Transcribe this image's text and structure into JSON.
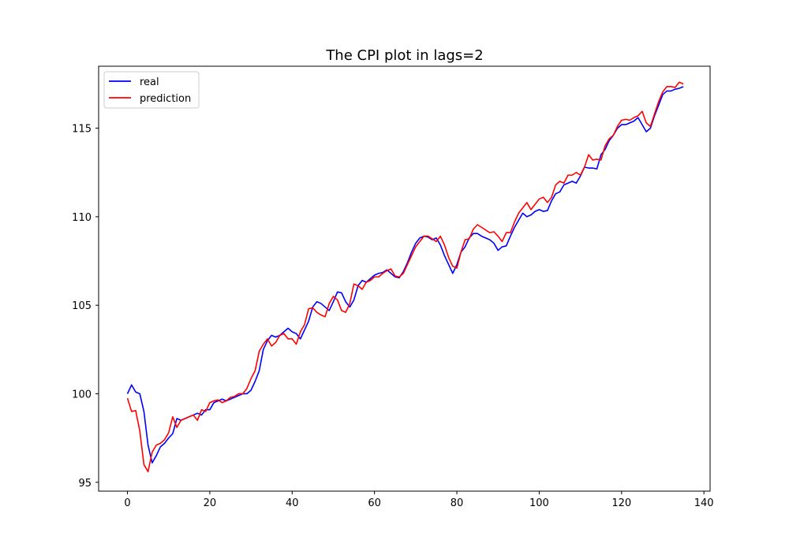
{
  "chart_data": {
    "type": "line",
    "title": "The CPI plot in lags=2",
    "xlabel": "",
    "ylabel": "",
    "xlim": [
      -7,
      141.5
    ],
    "ylim": [
      94.5,
      118.5
    ],
    "x_ticks": [
      0,
      20,
      40,
      60,
      80,
      100,
      120,
      140
    ],
    "y_ticks": [
      95,
      100,
      105,
      110,
      115
    ],
    "grid": false,
    "legend_placement": "top-left",
    "series": [
      {
        "name": "real",
        "color": "#0000ff",
        "points": [
          [
            0,
            100.0
          ],
          [
            1,
            100.5
          ],
          [
            2,
            100.1
          ],
          [
            3,
            100.0
          ],
          [
            4,
            99.0
          ],
          [
            5,
            97.1
          ],
          [
            6,
            96.1
          ],
          [
            7,
            96.5
          ],
          [
            8,
            97.0
          ],
          [
            9,
            97.2
          ],
          [
            10,
            97.5
          ],
          [
            11,
            97.75
          ],
          [
            12,
            98.6
          ],
          [
            13,
            98.5
          ],
          [
            14,
            98.6
          ],
          [
            15,
            98.7
          ],
          [
            16,
            98.8
          ],
          [
            17,
            98.9
          ],
          [
            18,
            98.8
          ],
          [
            19,
            99.1
          ],
          [
            20,
            99.1
          ],
          [
            21,
            99.5
          ],
          [
            22,
            99.6
          ],
          [
            23,
            99.7
          ],
          [
            24,
            99.6
          ],
          [
            25,
            99.7
          ],
          [
            26,
            99.8
          ],
          [
            27,
            99.9
          ],
          [
            28,
            100.0
          ],
          [
            29,
            100.0
          ],
          [
            30,
            100.2
          ],
          [
            31,
            100.7
          ],
          [
            32,
            101.3
          ],
          [
            33,
            102.5
          ],
          [
            34,
            103.0
          ],
          [
            35,
            103.3
          ],
          [
            36,
            103.2
          ],
          [
            37,
            103.3
          ],
          [
            38,
            103.5
          ],
          [
            39,
            103.7
          ],
          [
            40,
            103.5
          ],
          [
            41,
            103.4
          ],
          [
            42,
            103.1
          ],
          [
            43,
            103.6
          ],
          [
            44,
            104.1
          ],
          [
            45,
            104.9
          ],
          [
            46,
            105.2
          ],
          [
            47,
            105.1
          ],
          [
            48,
            104.9
          ],
          [
            49,
            104.7
          ],
          [
            50,
            105.2
          ],
          [
            51,
            105.75
          ],
          [
            52,
            105.7
          ],
          [
            53,
            105.2
          ],
          [
            54,
            104.9
          ],
          [
            55,
            105.3
          ],
          [
            56,
            106.1
          ],
          [
            57,
            106.4
          ],
          [
            58,
            106.3
          ],
          [
            59,
            106.5
          ],
          [
            60,
            106.7
          ],
          [
            61,
            106.8
          ],
          [
            62,
            106.85
          ],
          [
            63,
            107.0
          ],
          [
            64,
            106.8
          ],
          [
            65,
            106.6
          ],
          [
            66,
            106.55
          ],
          [
            67,
            106.9
          ],
          [
            68,
            107.4
          ],
          [
            69,
            108.0
          ],
          [
            70,
            108.5
          ],
          [
            71,
            108.8
          ],
          [
            72,
            108.9
          ],
          [
            73,
            108.85
          ],
          [
            74,
            108.7
          ],
          [
            75,
            108.8
          ],
          [
            76,
            108.4
          ],
          [
            77,
            107.8
          ],
          [
            78,
            107.3
          ],
          [
            79,
            106.8
          ],
          [
            80,
            107.3
          ],
          [
            81,
            108.0
          ],
          [
            82,
            108.3
          ],
          [
            83,
            108.8
          ],
          [
            84,
            109.05
          ],
          [
            85,
            109.05
          ],
          [
            86,
            108.9
          ],
          [
            87,
            108.8
          ],
          [
            88,
            108.7
          ],
          [
            89,
            108.5
          ],
          [
            90,
            108.1
          ],
          [
            91,
            108.3
          ],
          [
            92,
            108.35
          ],
          [
            93,
            108.9
          ],
          [
            94,
            109.4
          ],
          [
            95,
            109.8
          ],
          [
            96,
            110.2
          ],
          [
            97,
            110.0
          ],
          [
            98,
            110.1
          ],
          [
            99,
            110.3
          ],
          [
            100,
            110.4
          ],
          [
            101,
            110.3
          ],
          [
            102,
            110.35
          ],
          [
            103,
            110.9
          ],
          [
            104,
            111.3
          ],
          [
            105,
            111.4
          ],
          [
            106,
            111.8
          ],
          [
            107,
            111.9
          ],
          [
            108,
            112.0
          ],
          [
            109,
            111.9
          ],
          [
            110,
            112.3
          ],
          [
            111,
            112.8
          ],
          [
            112,
            112.75
          ],
          [
            113,
            112.75
          ],
          [
            114,
            112.7
          ],
          [
            115,
            113.5
          ],
          [
            116,
            113.8
          ],
          [
            117,
            114.3
          ],
          [
            118,
            114.6
          ],
          [
            119,
            115.0
          ],
          [
            120,
            115.2
          ],
          [
            121,
            115.2
          ],
          [
            122,
            115.3
          ],
          [
            123,
            115.4
          ],
          [
            124,
            115.6
          ],
          [
            125,
            115.2
          ],
          [
            126,
            114.8
          ],
          [
            127,
            115.0
          ],
          [
            128,
            115.7
          ],
          [
            129,
            116.3
          ],
          [
            130,
            116.9
          ],
          [
            131,
            117.1
          ],
          [
            132,
            117.1
          ],
          [
            133,
            117.2
          ],
          [
            134,
            117.25
          ],
          [
            135,
            117.35
          ]
        ]
      },
      {
        "name": "prediction",
        "color": "#ff0000",
        "points": [
          [
            0,
            99.75
          ],
          [
            1,
            99.0
          ],
          [
            2,
            99.05
          ],
          [
            3,
            97.9
          ],
          [
            4,
            96.0
          ],
          [
            5,
            95.6
          ],
          [
            6,
            96.7
          ],
          [
            7,
            97.1
          ],
          [
            8,
            97.2
          ],
          [
            9,
            97.4
          ],
          [
            10,
            97.8
          ],
          [
            11,
            98.7
          ],
          [
            12,
            98.1
          ],
          [
            13,
            98.5
          ],
          [
            14,
            98.6
          ],
          [
            15,
            98.7
          ],
          [
            16,
            98.8
          ],
          [
            17,
            98.5
          ],
          [
            18,
            99.1
          ],
          [
            19,
            99.0
          ],
          [
            20,
            99.5
          ],
          [
            21,
            99.6
          ],
          [
            22,
            99.65
          ],
          [
            23,
            99.5
          ],
          [
            24,
            99.6
          ],
          [
            25,
            99.8
          ],
          [
            26,
            99.85
          ],
          [
            27,
            100.0
          ],
          [
            28,
            100.0
          ],
          [
            29,
            100.3
          ],
          [
            30,
            100.85
          ],
          [
            31,
            101.3
          ],
          [
            32,
            102.4
          ],
          [
            33,
            102.8
          ],
          [
            34,
            103.1
          ],
          [
            35,
            102.7
          ],
          [
            36,
            102.9
          ],
          [
            37,
            103.3
          ],
          [
            38,
            103.4
          ],
          [
            39,
            103.1
          ],
          [
            40,
            103.1
          ],
          [
            41,
            102.8
          ],
          [
            42,
            103.5
          ],
          [
            43,
            103.9
          ],
          [
            44,
            104.8
          ],
          [
            45,
            104.85
          ],
          [
            46,
            104.6
          ],
          [
            47,
            104.45
          ],
          [
            48,
            104.35
          ],
          [
            49,
            105.1
          ],
          [
            50,
            105.5
          ],
          [
            51,
            105.3
          ],
          [
            52,
            104.7
          ],
          [
            53,
            104.6
          ],
          [
            54,
            105.1
          ],
          [
            55,
            106.2
          ],
          [
            56,
            106.1
          ],
          [
            57,
            105.9
          ],
          [
            58,
            106.3
          ],
          [
            59,
            106.4
          ],
          [
            60,
            106.6
          ],
          [
            61,
            106.6
          ],
          [
            62,
            106.8
          ],
          [
            63,
            106.95
          ],
          [
            64,
            107.05
          ],
          [
            65,
            106.65
          ],
          [
            66,
            106.6
          ],
          [
            67,
            106.8
          ],
          [
            68,
            107.3
          ],
          [
            69,
            107.8
          ],
          [
            70,
            108.3
          ],
          [
            71,
            108.6
          ],
          [
            72,
            108.9
          ],
          [
            73,
            108.9
          ],
          [
            74,
            108.75
          ],
          [
            75,
            108.6
          ],
          [
            76,
            108.9
          ],
          [
            77,
            108.4
          ],
          [
            78,
            107.7
          ],
          [
            79,
            107.2
          ],
          [
            80,
            107.1
          ],
          [
            81,
            108.0
          ],
          [
            82,
            108.7
          ],
          [
            83,
            108.75
          ],
          [
            84,
            109.3
          ],
          [
            85,
            109.55
          ],
          [
            86,
            109.4
          ],
          [
            87,
            109.25
          ],
          [
            88,
            109.1
          ],
          [
            89,
            109.15
          ],
          [
            90,
            108.9
          ],
          [
            91,
            108.6
          ],
          [
            92,
            109.1
          ],
          [
            93,
            109.1
          ],
          [
            94,
            109.7
          ],
          [
            95,
            110.2
          ],
          [
            96,
            110.5
          ],
          [
            97,
            110.8
          ],
          [
            98,
            110.4
          ],
          [
            99,
            110.7
          ],
          [
            100,
            111.0
          ],
          [
            101,
            111.1
          ],
          [
            102,
            110.8
          ],
          [
            103,
            111.1
          ],
          [
            104,
            111.8
          ],
          [
            105,
            112.0
          ],
          [
            106,
            111.9
          ],
          [
            107,
            112.35
          ],
          [
            108,
            112.35
          ],
          [
            109,
            112.5
          ],
          [
            110,
            112.35
          ],
          [
            111,
            112.8
          ],
          [
            112,
            113.5
          ],
          [
            113,
            113.2
          ],
          [
            114,
            113.25
          ],
          [
            115,
            113.2
          ],
          [
            116,
            114.0
          ],
          [
            117,
            114.4
          ],
          [
            118,
            114.6
          ],
          [
            119,
            115.1
          ],
          [
            120,
            115.45
          ],
          [
            121,
            115.5
          ],
          [
            122,
            115.45
          ],
          [
            123,
            115.6
          ],
          [
            124,
            115.7
          ],
          [
            125,
            115.95
          ],
          [
            126,
            115.3
          ],
          [
            127,
            115.1
          ],
          [
            128,
            115.8
          ],
          [
            129,
            116.5
          ],
          [
            130,
            117.05
          ],
          [
            131,
            117.35
          ],
          [
            132,
            117.35
          ],
          [
            133,
            117.3
          ],
          [
            134,
            117.6
          ],
          [
            135,
            117.5
          ]
        ]
      }
    ]
  }
}
